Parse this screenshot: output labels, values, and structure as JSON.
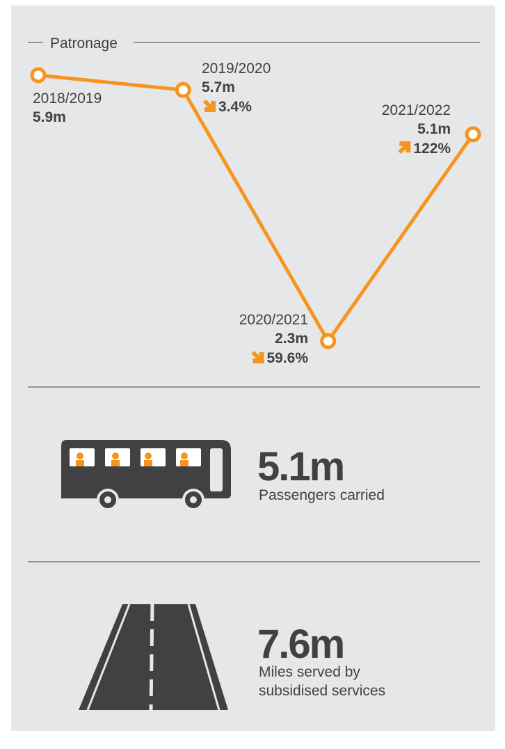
{
  "chart_data": {
    "type": "line",
    "title": "Patronage",
    "categories": [
      "2018/2019",
      "2019/2020",
      "2020/2021",
      "2021/2022"
    ],
    "values": [
      5.9,
      5.7,
      2.3,
      5.1
    ],
    "value_labels": [
      "5.9m",
      "5.7m",
      "2.3m",
      "5.1m"
    ],
    "change_values": [
      null,
      -3.4,
      -59.6,
      122
    ],
    "change_labels": [
      null,
      "3.4%",
      "59.6%",
      "122%"
    ],
    "color": "#f7941d"
  },
  "stats": [
    {
      "value_label": "5.1m",
      "label": [
        "Passengers carried"
      ]
    },
    {
      "value_label": "7.6m",
      "label": [
        "Miles served by",
        "subsidised services"
      ]
    }
  ]
}
